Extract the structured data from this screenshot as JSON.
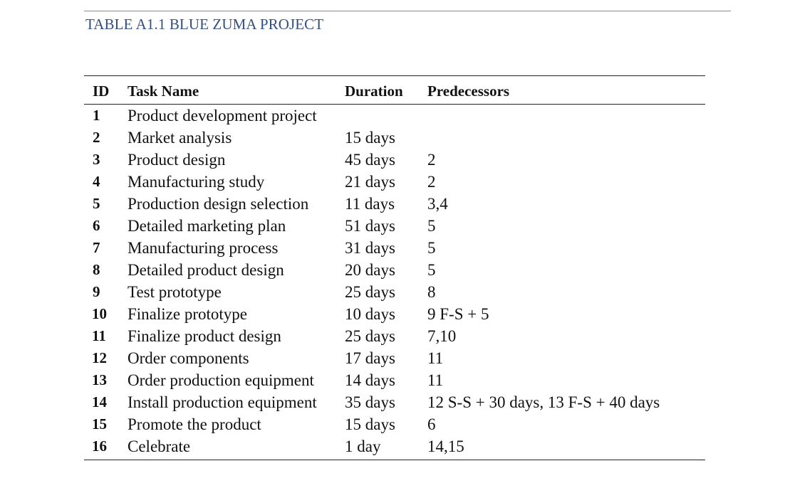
{
  "caption": "TABLE A1.1 BLUE ZUMA PROJECT",
  "table": {
    "headers": {
      "id": "ID",
      "task": "Task Name",
      "duration": "Duration",
      "predecessors": "Predecessors"
    },
    "rows": [
      {
        "id": "1",
        "task": "Product development project",
        "duration": "",
        "predecessors": ""
      },
      {
        "id": "2",
        "task": "Market analysis",
        "duration": "15 days",
        "predecessors": ""
      },
      {
        "id": "3",
        "task": "Product design",
        "duration": "45 days",
        "predecessors": "2"
      },
      {
        "id": "4",
        "task": "Manufacturing study",
        "duration": "21 days",
        "predecessors": "2"
      },
      {
        "id": "5",
        "task": "Production design selection",
        "duration": "11 days",
        "predecessors": "3,4"
      },
      {
        "id": "6",
        "task": "Detailed marketing plan",
        "duration": "51 days",
        "predecessors": "5"
      },
      {
        "id": "7",
        "task": "Manufacturing process",
        "duration": "31 days",
        "predecessors": "5"
      },
      {
        "id": "8",
        "task": "Detailed product design",
        "duration": "20 days",
        "predecessors": "5"
      },
      {
        "id": "9",
        "task": "Test prototype",
        "duration": "25 days",
        "predecessors": "8"
      },
      {
        "id": "10",
        "task": "Finalize prototype",
        "duration": "10 days",
        "predecessors": "9 F-S + 5"
      },
      {
        "id": "11",
        "task": "Finalize product design",
        "duration": "25 days",
        "predecessors": "7,10"
      },
      {
        "id": "12",
        "task": "Order components",
        "duration": "17 days",
        "predecessors": "11"
      },
      {
        "id": "13",
        "task": "Order production equipment",
        "duration": "14 days",
        "predecessors": "11"
      },
      {
        "id": "14",
        "task": "Install production equipment",
        "duration": "35 days",
        "predecessors": "12 S-S + 30 days, 13 F-S + 40 days"
      },
      {
        "id": "15",
        "task": "Promote the product",
        "duration": "15 days",
        "predecessors": "6"
      },
      {
        "id": "16",
        "task": "Celebrate",
        "duration": "1 day",
        "predecessors": "14,15"
      }
    ]
  },
  "colors": {
    "caption": "#2f4f86",
    "top_rule": "#6b93c4",
    "text": "#111111"
  }
}
